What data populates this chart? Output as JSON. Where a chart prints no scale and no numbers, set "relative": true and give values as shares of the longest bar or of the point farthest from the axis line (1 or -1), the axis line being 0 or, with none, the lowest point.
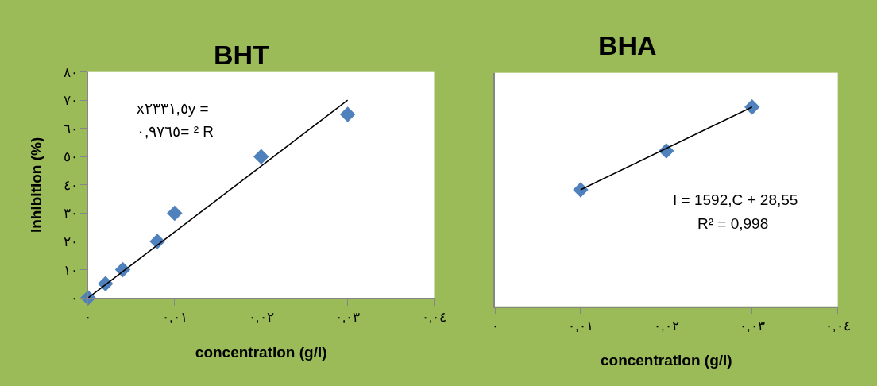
{
  "chart_data": [
    {
      "type": "scatter",
      "title": "BHT",
      "xlabel": "concentration (g/l)",
      "ylabel": "Inhibition (%)",
      "marker": "diamond",
      "annotations": [
        "x٢٣٣١,٥y =",
        "٠,٩٧٦٥= ² R"
      ],
      "xlim": [
        0,
        0.04
      ],
      "xticks": [
        {
          "value": 0,
          "label": "٠"
        },
        {
          "value": 0.01,
          "label": "٠,٠١"
        },
        {
          "value": 0.02,
          "label": "٠,٠٢"
        },
        {
          "value": 0.03,
          "label": "٠,٠٣"
        },
        {
          "value": 0.04,
          "label": "٠,٠٤"
        }
      ],
      "ylim": [
        0,
        80
      ],
      "yticks": [
        {
          "value": 0,
          "label": "٠"
        },
        {
          "value": 10,
          "label": "١٠"
        },
        {
          "value": 20,
          "label": "٢٠"
        },
        {
          "value": 30,
          "label": "٣٠"
        },
        {
          "value": 40,
          "label": "٤٠"
        },
        {
          "value": 50,
          "label": "٥٠"
        },
        {
          "value": 60,
          "label": "٦٠"
        },
        {
          "value": 70,
          "label": "٧٠"
        },
        {
          "value": 80,
          "label": "٨٠"
        }
      ],
      "series": [
        {
          "color": "#4f81bd",
          "x": [
            0,
            0.002,
            0.004,
            0.008,
            0.01,
            0.02,
            0.03
          ],
          "values": [
            0,
            5,
            10,
            20,
            30,
            50,
            65
          ]
        },
        {
          "type": "line",
          "marker": "none",
          "color": "#000000",
          "x": [
            0,
            0.03
          ],
          "values": [
            0,
            70
          ]
        }
      ]
    },
    {
      "type": "scatter",
      "title": "BHA",
      "xlabel": "concentration (g/l)",
      "marker": "diamond",
      "relative": true,
      "tick_labels": "x",
      "annotations": [
        "I = 1592,C + 28,55",
        "R² = 0,998"
      ],
      "xlim": [
        0,
        0.04
      ],
      "xticks": [
        {
          "value": 0,
          "label": "٠"
        },
        {
          "value": 0.01,
          "label": "٠,٠١"
        },
        {
          "value": 0.02,
          "label": "٠,٠٢"
        },
        {
          "value": 0.03,
          "label": "٠,٠٣"
        },
        {
          "value": 0.04,
          "label": "٠,٠٤"
        }
      ],
      "series": [
        {
          "color": "#4f81bd",
          "x": [
            0.01,
            0.02,
            0.03
          ],
          "values": [
            0.585,
            0.78,
            1
          ]
        },
        {
          "type": "line",
          "marker": "none",
          "color": "#000000",
          "x": [
            0.01,
            0.03
          ],
          "values": [
            0.585,
            1
          ]
        }
      ]
    }
  ]
}
